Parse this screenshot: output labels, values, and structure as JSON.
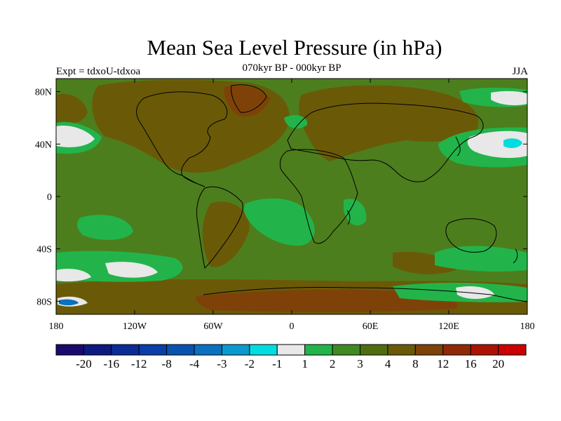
{
  "header": {
    "title": "Mean Sea Level Pressure (in hPa)",
    "subtitle": "070kyr BP - 000kyr BP",
    "left_label": "Expt = tdxoU-tdxoa",
    "right_label": "JJA"
  },
  "map": {
    "projection": "cylindrical equidistant",
    "lon_range": [
      -180,
      180
    ],
    "lat_range": [
      -90,
      90
    ],
    "lat_ticks": [
      {
        "value": 80,
        "label": "80N"
      },
      {
        "value": 40,
        "label": "40N"
      },
      {
        "value": 0,
        "label": "0"
      },
      {
        "value": -40,
        "label": "40S"
      },
      {
        "value": -80,
        "label": "80S"
      }
    ],
    "lon_ticks": [
      {
        "value": -180,
        "label": "180"
      },
      {
        "value": -120,
        "label": "120W"
      },
      {
        "value": -60,
        "label": "60W"
      },
      {
        "value": 0,
        "label": "0"
      },
      {
        "value": 60,
        "label": "60E"
      },
      {
        "value": 120,
        "label": "120E"
      },
      {
        "value": 180,
        "label": "180"
      }
    ],
    "background_level_color": "#4d7e1d"
  },
  "colorbar": {
    "colors": [
      "#1a0a6b",
      "#0d1a80",
      "#0a2c96",
      "#0a3ea8",
      "#0a52b0",
      "#0a70c0",
      "#0a9ad0",
      "#00dde0",
      "#e8e8e8",
      "#22b44a",
      "#3f8a22",
      "#4f6d10",
      "#6a5a08",
      "#7e4208",
      "#902a06",
      "#ac1204",
      "#cc0000"
    ],
    "labels": [
      "-20",
      "-16",
      "-12",
      "-8",
      "-4",
      "-3",
      "-2",
      "-1",
      "1",
      "2",
      "3",
      "4",
      "8",
      "12",
      "16",
      "20"
    ]
  }
}
